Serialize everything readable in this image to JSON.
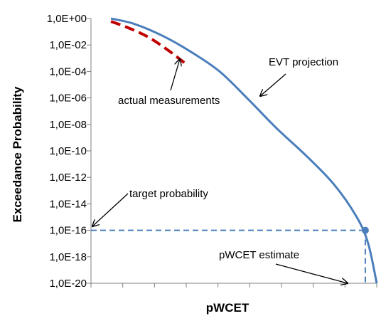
{
  "chart_data": {
    "type": "line",
    "xlabel": "pWCET",
    "ylabel": "Exceedance Probability",
    "y_scale": "log",
    "ylim": [
      1e-20,
      1
    ],
    "y_ticks": [
      {
        "value": 1.0,
        "label": "1,0E+00"
      },
      {
        "value": 0.01,
        "label": "1,0E-02"
      },
      {
        "value": 0.0001,
        "label": "1,0E-04"
      },
      {
        "value": 1e-06,
        "label": "1,0E-06"
      },
      {
        "value": 1e-08,
        "label": "1,0E-08"
      },
      {
        "value": 1e-10,
        "label": "1,0E-10"
      },
      {
        "value": 1e-12,
        "label": "1,0E-12"
      },
      {
        "value": 1e-14,
        "label": "1,0E-14"
      },
      {
        "value": 1e-16,
        "label": "1,0E-16"
      },
      {
        "value": 1e-18,
        "label": "1,0E-18"
      },
      {
        "value": 1e-20,
        "label": "1,0E-20"
      }
    ],
    "x_ticks_count": 9,
    "xlim": [
      0,
      10
    ],
    "grid": false,
    "series": [
      {
        "role": "projection",
        "color": "#4a7ebb",
        "style": "solid",
        "x": [
          0.7,
          1.5,
          2.5,
          3.5,
          4.5,
          5.5,
          6.5,
          7.5,
          8.5,
          9.3,
          9.7,
          10.0
        ],
        "y": [
          1,
          0.4,
          0.05,
          0.003,
          0.0001,
          8e-07,
          5e-09,
          5e-11,
          3e-13,
          1e-15,
          1e-17,
          1e-20
        ]
      },
      {
        "role": "measurements",
        "color": "#c00000",
        "style": "dashed",
        "x": [
          0.7,
          1.3,
          2.0,
          2.7,
          3.3
        ],
        "y": [
          0.6,
          0.2,
          0.04,
          0.004,
          0.0004
        ]
      }
    ],
    "target_probability": 1e-16,
    "pwcet_estimate_x": 9.6,
    "annotations": [
      {
        "key": "evt_projection",
        "text": "EVT projection"
      },
      {
        "key": "actual_measurements",
        "text": "actual measurements"
      },
      {
        "key": "target_probability",
        "text": "target probability"
      },
      {
        "key": "pwcet_estimate",
        "text": "pWCET estimate"
      }
    ],
    "colors": {
      "projection": "#4a7ebb",
      "measurements": "#c00000",
      "axis": "#808080"
    }
  }
}
